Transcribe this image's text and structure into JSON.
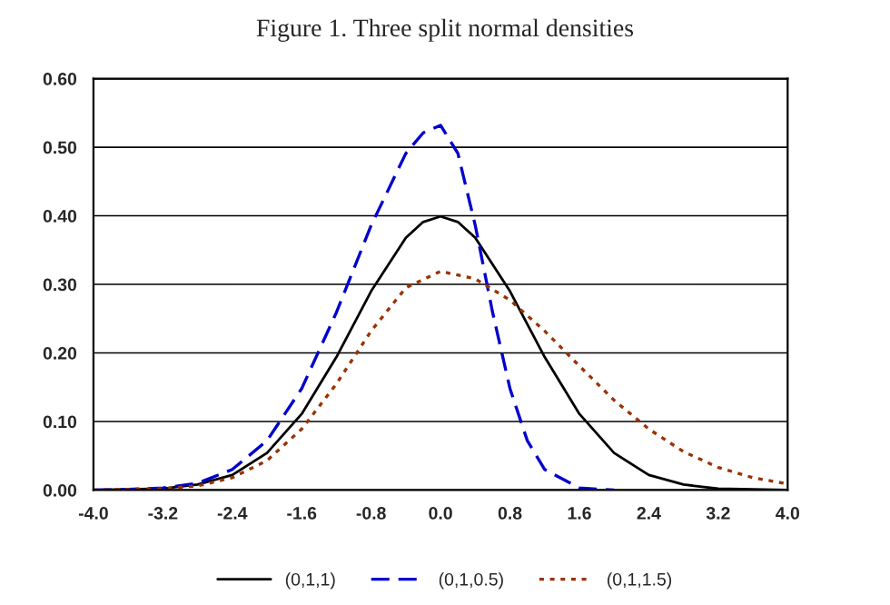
{
  "chart_data": {
    "type": "line",
    "title": "Figure 1. Three split normal densities",
    "series": [
      {
        "name": "(0,1,1)",
        "color": "#000000",
        "line_style": "solid",
        "x": [
          -4.0,
          -3.6,
          -3.2,
          -2.8,
          -2.4,
          -2.0,
          -1.6,
          -1.2,
          -0.8,
          -0.4,
          -0.2,
          0.0,
          0.2,
          0.4,
          0.8,
          1.2,
          1.6,
          2.0,
          2.4,
          2.8,
          3.2,
          3.6,
          4.0
        ],
        "values": [
          0.0,
          0.001,
          0.002,
          0.008,
          0.022,
          0.054,
          0.111,
          0.194,
          0.29,
          0.368,
          0.391,
          0.399,
          0.391,
          0.368,
          0.29,
          0.194,
          0.111,
          0.054,
          0.022,
          0.008,
          0.002,
          0.001,
          0.0
        ]
      },
      {
        "name": "(0,1,0.5)",
        "color": "#0000cc",
        "line_style": "dashed",
        "x": [
          -4.0,
          -3.6,
          -3.2,
          -2.8,
          -2.4,
          -2.0,
          -1.6,
          -1.2,
          -0.8,
          -0.4,
          -0.2,
          0.0,
          0.2,
          0.4,
          0.6,
          0.8,
          1.0,
          1.2,
          1.6,
          2.0
        ],
        "values": [
          0.0,
          0.001,
          0.003,
          0.01,
          0.03,
          0.072,
          0.148,
          0.259,
          0.386,
          0.491,
          0.521,
          0.532,
          0.491,
          0.386,
          0.259,
          0.148,
          0.072,
          0.03,
          0.003,
          0.0
        ]
      },
      {
        "name": "(0,1,1.5)",
        "color": "#993300",
        "line_style": "dotted",
        "x": [
          -4.0,
          -3.6,
          -3.2,
          -2.8,
          -2.4,
          -2.0,
          -1.6,
          -1.2,
          -0.8,
          -0.4,
          0.0,
          0.4,
          0.8,
          1.2,
          1.6,
          2.0,
          2.4,
          2.8,
          3.2,
          3.6,
          4.0
        ],
        "values": [
          0.0,
          0.001,
          0.002,
          0.006,
          0.018,
          0.043,
          0.089,
          0.155,
          0.232,
          0.295,
          0.319,
          0.308,
          0.277,
          0.232,
          0.181,
          0.131,
          0.089,
          0.056,
          0.033,
          0.018,
          0.009
        ]
      }
    ],
    "xlim": [
      -4.0,
      4.0
    ],
    "xticks": [
      {
        "value": -4.0,
        "label": "-4.0"
      },
      {
        "value": -3.2,
        "label": "-3.2"
      },
      {
        "value": -2.4,
        "label": "-2.4"
      },
      {
        "value": -1.6,
        "label": "-1.6"
      },
      {
        "value": -0.8,
        "label": "-0.8"
      },
      {
        "value": 0.0,
        "label": "0.0"
      },
      {
        "value": 0.8,
        "label": "0.8"
      },
      {
        "value": 1.6,
        "label": "1.6"
      },
      {
        "value": 2.4,
        "label": "2.4"
      },
      {
        "value": 3.2,
        "label": "3.2"
      },
      {
        "value": 4.0,
        "label": "4.0"
      }
    ],
    "ylim": [
      0.0,
      0.6
    ],
    "yticks": [
      {
        "value": 0.0,
        "label": "0.00"
      },
      {
        "value": 0.1,
        "label": "0.10"
      },
      {
        "value": 0.2,
        "label": "0.20"
      },
      {
        "value": 0.3,
        "label": "0.30"
      },
      {
        "value": 0.4,
        "label": "0.40"
      },
      {
        "value": 0.5,
        "label": "0.50"
      },
      {
        "value": 0.6,
        "label": "0.60"
      }
    ],
    "grid": "y",
    "legend": "bottom"
  }
}
